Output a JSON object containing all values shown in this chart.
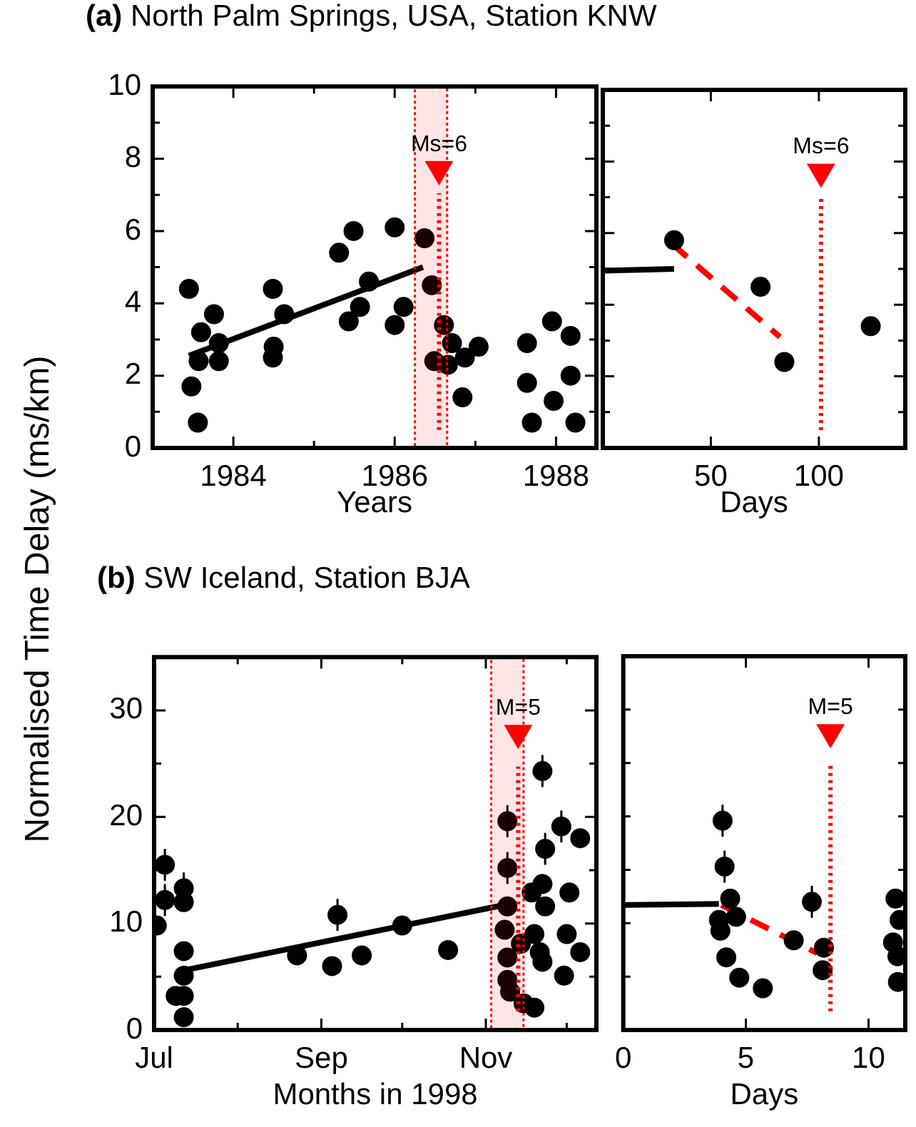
{
  "chart_data": [
    {
      "type": "scatter",
      "title": "(a) North Palm Springs, USA, Station KNW",
      "xlabel": "Years",
      "ylabel": "Normalised Time Delay (ms/km)",
      "xlim": [
        1983,
        1988.5
      ],
      "xticks": [
        1984,
        {
          "value": 1985,
          "label": null
        },
        1986,
        {
          "value": 1987,
          "label": null
        },
        1988
      ],
      "ylim": [
        0,
        10
      ],
      "yticks": [
        0,
        {
          "value": 1,
          "label": null
        },
        2,
        {
          "value": 3,
          "label": null
        },
        4,
        {
          "value": 5,
          "label": null
        },
        6,
        {
          "value": 7,
          "label": null
        },
        8,
        {
          "value": 9,
          "label": null
        },
        10
      ],
      "marker": "circle",
      "series": [
        {
          "color": "#000000",
          "x": [
            1983.45,
            1983.6,
            1983.57,
            1983.48,
            1983.56,
            1983.76,
            1983.82,
            1983.82,
            1984.49,
            1984.5,
            1984.49,
            1984.63,
            1985.31,
            1985.49,
            1985.43,
            1985.57,
            1985.68,
            1986.0,
            1986.0,
            1986.11,
            1986.37,
            1986.46,
            1986.61,
            1986.49,
            1986.66,
            1986.71,
            1986.87,
            1987.04,
            1986.84,
            1987.64,
            1987.64,
            1987.7,
            1987.95,
            1987.97,
            1988.18,
            1988.18,
            1988.24
          ],
          "values": [
            4.4,
            3.2,
            2.4,
            1.7,
            0.7,
            3.7,
            2.9,
            2.4,
            4.4,
            2.8,
            2.5,
            3.7,
            5.4,
            6.0,
            3.5,
            3.9,
            4.6,
            6.1,
            3.4,
            3.9,
            5.8,
            4.5,
            3.4,
            2.4,
            2.3,
            2.9,
            2.5,
            2.8,
            1.4,
            2.9,
            1.8,
            0.7,
            3.5,
            1.3,
            3.1,
            2.0,
            0.7
          ]
        },
        {
          "type": "line",
          "color": "#000000",
          "marker": "none",
          "line_style": "solid",
          "x": [
            1983.45,
            1986.35
          ],
          "values": [
            2.55,
            5.0
          ]
        },
        {
          "color": "#ff0000",
          "marker": "triangle",
          "x": [
            1986.55
          ],
          "values": [
            7.6
          ]
        }
      ],
      "annotations": [
        {
          "text": "Ms=6",
          "x": 1986.55,
          "y": 7.6
        }
      ],
      "ref_lines": [
        {
          "axis": "x",
          "value": 1986.55,
          "color": "#ff0000",
          "line_style": "dotted"
        }
      ],
      "bands": [
        {
          "axis": "x",
          "from": 1986.25,
          "to": 1986.65,
          "color": "#ff0000"
        }
      ]
    },
    {
      "type": "scatter",
      "xlabel": "Days",
      "xlim": [
        0,
        140
      ],
      "xticks": [
        50,
        100
      ],
      "ylim": [
        0,
        10
      ],
      "yticks": [
        0,
        {
          "value": 1,
          "label": null
        },
        2,
        {
          "value": 3,
          "label": null
        },
        4,
        {
          "value": 5,
          "label": null
        },
        6,
        {
          "value": 7,
          "label": null
        },
        8,
        {
          "value": 9,
          "label": null
        },
        10
      ],
      "tick_labels": "x",
      "marker": "circle",
      "series": [
        {
          "color": "#000000",
          "x": [
            33,
            73,
            84,
            124
          ],
          "values": [
            5.8,
            4.5,
            2.4,
            3.4
          ]
        },
        {
          "type": "line",
          "color": "#000000",
          "marker": "none",
          "line_style": "solid",
          "x": [
            0,
            33
          ],
          "values": [
            4.95,
            5.0
          ]
        },
        {
          "type": "line",
          "color": "#ff0000",
          "marker": "none",
          "line_style": "dashed",
          "x": [
            32,
            82
          ],
          "values": [
            5.7,
            3.1
          ]
        },
        {
          "color": "#ff0000",
          "marker": "triangle",
          "x": [
            101
          ],
          "values": [
            7.6
          ]
        }
      ],
      "annotations": [
        {
          "text": "Ms=6",
          "x": 101,
          "y": 7.6
        }
      ],
      "ref_lines": [
        {
          "axis": "x",
          "value": 101,
          "color": "#ff0000",
          "line_style": "dotted"
        }
      ]
    },
    {
      "type": "scatter",
      "title": "(b) SW Iceland, Station BJA",
      "xlabel": "Months in 1998",
      "xlim": [
        "1998-07-01",
        "1998-12-12"
      ],
      "xticks": [
        {
          "value": "1998-07-01",
          "label": "Jul"
        },
        {
          "value": "1998-08-01",
          "label": null
        },
        {
          "value": "1998-09-01",
          "label": "Sep"
        },
        {
          "value": "1998-10-01",
          "label": null
        },
        {
          "value": "1998-11-01",
          "label": "Nov"
        },
        {
          "value": "1998-12-01",
          "label": null
        }
      ],
      "ylim": [
        0,
        35
      ],
      "yticks": [
        0,
        {
          "value": 5,
          "label": null
        },
        10,
        {
          "value": 15,
          "label": null
        },
        20,
        {
          "value": 25,
          "label": null
        },
        30
      ],
      "marker": "circle",
      "series": [
        {
          "color": "#000000",
          "x": [
            "1998-07-02",
            "1998-07-05",
            "1998-07-05",
            "1998-07-12",
            "1998-07-12",
            "1998-07-12",
            "1998-07-09",
            "1998-07-12",
            "1998-07-12",
            "1998-07-12",
            "1998-08-23",
            "1998-09-07",
            "1998-09-05",
            "1998-09-16",
            "1998-10-01",
            "1998-10-18",
            "1998-11-09",
            "1998-11-09",
            "1998-11-09",
            "1998-11-08",
            "1998-11-09",
            "1998-11-09",
            "1998-11-10",
            "1998-11-14",
            "1998-11-15",
            "1998-11-18",
            "1998-11-19",
            "1998-11-19",
            "1998-11-21",
            "1998-11-22",
            "1998-11-22",
            "1998-11-23",
            "1998-11-23",
            "1998-11-22",
            "1998-11-29",
            "1998-11-30",
            "1998-12-02",
            "1998-12-01",
            "1998-12-06",
            "1998-12-06"
          ],
          "values": [
            9.8,
            15.5,
            12.2,
            13.3,
            12.0,
            7.4,
            3.2,
            3.2,
            5.1,
            1.2,
            7.0,
            10.8,
            6.0,
            7.0,
            9.8,
            7.5,
            19.6,
            15.2,
            11.6,
            9.4,
            6.8,
            4.7,
            3.6,
            8.1,
            2.5,
            12.9,
            9.0,
            2.1,
            7.3,
            13.7,
            24.3,
            17.0,
            11.6,
            6.4,
            19.1,
            5.1,
            12.9,
            9.0,
            18.0,
            7.3
          ],
          "errors": [
            null,
            1.5,
            1.5,
            1.5,
            null,
            null,
            null,
            null,
            null,
            null,
            null,
            1.5,
            null,
            null,
            null,
            null,
            1.5,
            1.5,
            null,
            null,
            null,
            null,
            null,
            null,
            null,
            null,
            null,
            null,
            null,
            null,
            1.5,
            1.5,
            null,
            null,
            1.5,
            null,
            null,
            null,
            null,
            null
          ]
        },
        {
          "type": "line",
          "color": "#000000",
          "marker": "none",
          "line_style": "solid",
          "x": [
            "1998-07-12",
            "1998-11-11"
          ],
          "values": [
            5.6,
            11.9
          ]
        },
        {
          "color": "#ff0000",
          "marker": "triangle",
          "x": [
            "1998-11-13"
          ],
          "values": [
            27.5
          ]
        }
      ],
      "annotations": [
        {
          "text": "M=5",
          "x": "1998-11-13",
          "y": 27.5
        }
      ],
      "ref_lines": [
        {
          "axis": "x",
          "value": "1998-11-13",
          "color": "#ff0000",
          "line_style": "dotted"
        }
      ],
      "bands": [
        {
          "axis": "x",
          "from": "1998-11-03",
          "to": "1998-11-15",
          "color": "#ff0000"
        }
      ]
    },
    {
      "type": "scatter",
      "xlabel": "Days",
      "xlim": [
        0,
        11.5
      ],
      "xticks": [
        0,
        5,
        10
      ],
      "ylim": [
        0,
        35
      ],
      "yticks": [
        {
          "value": 0,
          "label": null
        },
        {
          "value": 5,
          "label": null
        },
        {
          "value": 10,
          "label": null
        },
        {
          "value": 15,
          "label": null
        },
        {
          "value": 20,
          "label": null
        },
        {
          "value": 25,
          "label": null
        },
        {
          "value": 30,
          "label": null
        }
      ],
      "tick_labels": "x",
      "marker": "circle",
      "series": [
        {
          "color": "#000000",
          "x": [
            4.05,
            4.13,
            4.36,
            3.9,
            3.96,
            4.6,
            4.2,
            4.73,
            5.69,
            6.95,
            7.69,
            8.18,
            8.13,
            11.1,
            11.27,
            11.0,
            11.18,
            11.2
          ],
          "values": [
            19.6,
            15.3,
            12.3,
            10.3,
            9.3,
            10.6,
            6.8,
            4.9,
            3.9,
            8.4,
            12.0,
            7.7,
            5.6,
            12.3,
            10.3,
            8.2,
            6.9,
            4.5
          ],
          "errors": [
            1.5,
            1.5,
            null,
            null,
            null,
            null,
            null,
            null,
            null,
            null,
            1.5,
            null,
            null,
            null,
            null,
            null,
            null,
            null
          ]
        },
        {
          "type": "line",
          "color": "#000000",
          "marker": "none",
          "line_style": "solid",
          "x": [
            0,
            3.9
          ],
          "values": [
            11.7,
            11.8
          ]
        },
        {
          "type": "line",
          "color": "#ff0000",
          "marker": "none",
          "line_style": "dashed",
          "x": [
            4.0,
            7.9
          ],
          "values": [
            11.7,
            7.2
          ]
        },
        {
          "color": "#ff0000",
          "marker": "triangle",
          "x": [
            8.45
          ],
          "values": [
            27.5
          ]
        }
      ],
      "annotations": [
        {
          "text": "M=5",
          "x": 8.45,
          "y": 27.5
        }
      ],
      "ref_lines": [
        {
          "axis": "x",
          "value": 8.45,
          "color": "#ff0000",
          "line_style": "dotted"
        }
      ]
    }
  ]
}
